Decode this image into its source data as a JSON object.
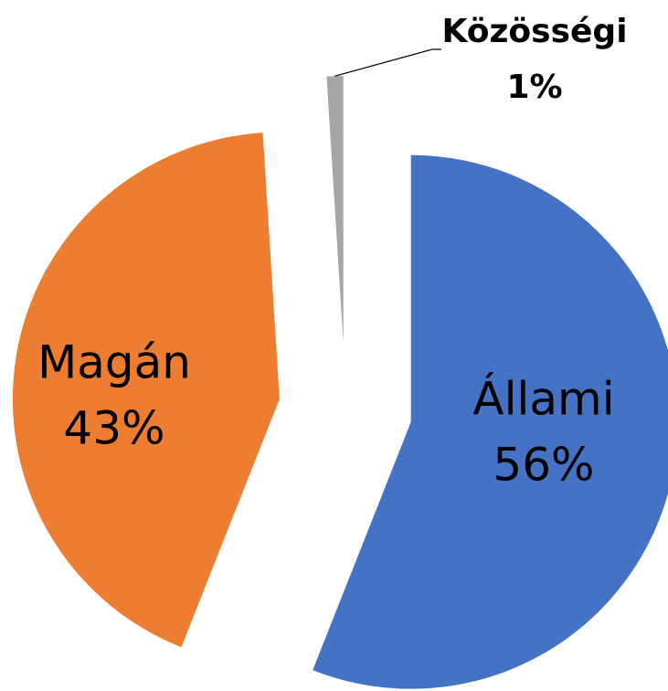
{
  "chart_data": {
    "type": "pie",
    "categories": [
      "Állami",
      "Magán",
      "Közösségi"
    ],
    "values": [
      56,
      43,
      1
    ],
    "value_labels": [
      "56%",
      "43%",
      "1%"
    ],
    "colors": [
      "#4472c4",
      "#ed7d31",
      "#a5a5a5"
    ]
  }
}
